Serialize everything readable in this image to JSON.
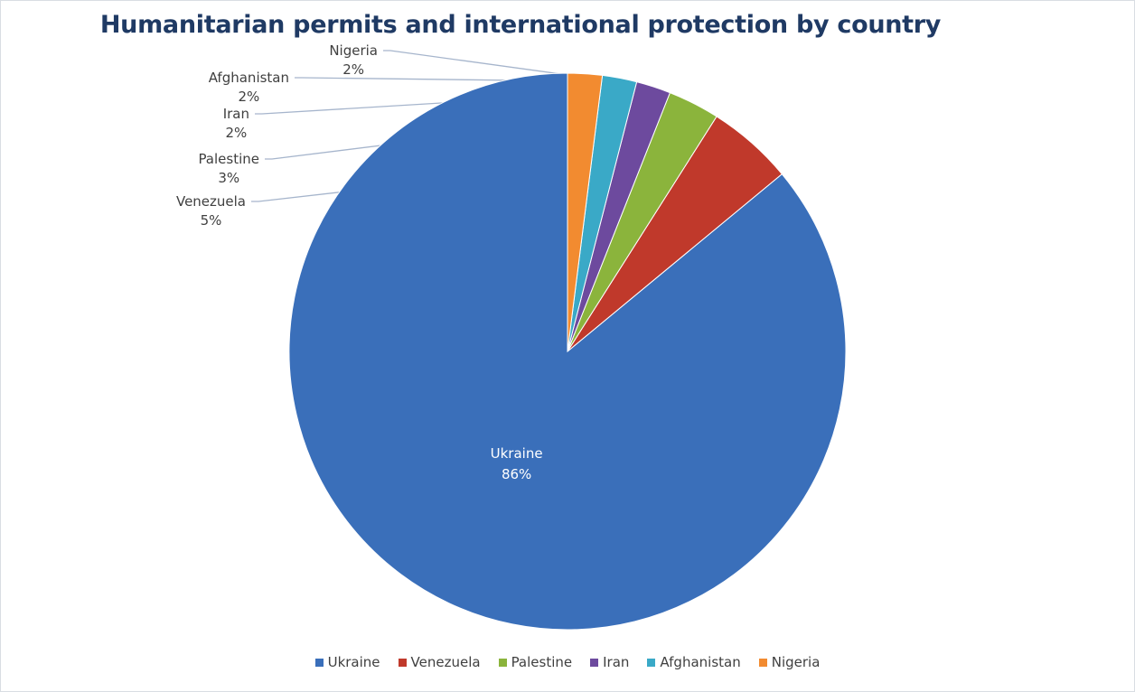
{
  "chart_data": {
    "type": "pie",
    "title": "Humanitarian permits and international protection by country",
    "legend_position": "bottom",
    "start_angle_deg": 0,
    "direction": "counterclockwise",
    "slices": [
      {
        "label": "Ukraine",
        "value": 86,
        "value_label": "86%",
        "color": "#3a6fba",
        "label_placement": "inside"
      },
      {
        "label": "Venezuela",
        "value": 5,
        "value_label": "5%",
        "color": "#c0392b",
        "label_placement": "outside"
      },
      {
        "label": "Palestine",
        "value": 3,
        "value_label": "3%",
        "color": "#8bb43c",
        "label_placement": "outside"
      },
      {
        "label": "Iran",
        "value": 2,
        "value_label": "2%",
        "color": "#6d4a9e",
        "label_placement": "outside"
      },
      {
        "label": "Afghanistan",
        "value": 2,
        "value_label": "2%",
        "color": "#3aa9c7",
        "label_placement": "outside"
      },
      {
        "label": "Nigeria",
        "value": 2,
        "value_label": "2%",
        "color": "#f28b30",
        "label_placement": "outside"
      }
    ]
  }
}
